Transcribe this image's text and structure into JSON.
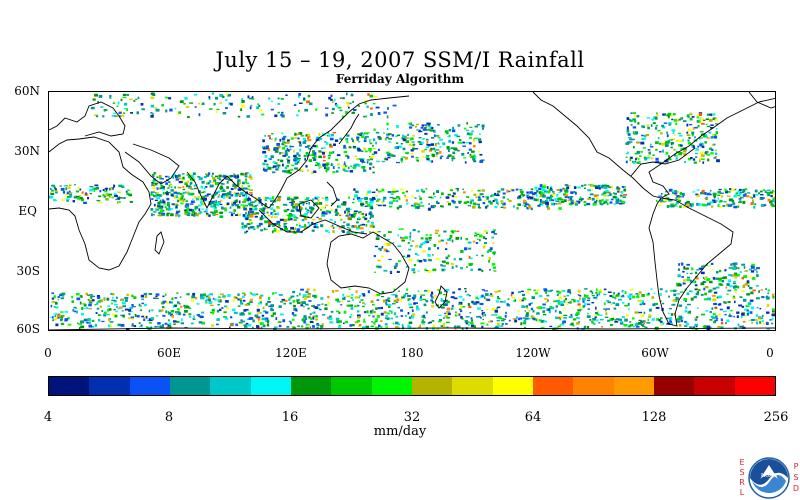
{
  "title": "July 15 – 19, 2007 SSM/I Rainfall",
  "subtitle": "Ferriday Algorithm",
  "latitude_labels": [
    "60N",
    "30N",
    "EQ",
    "30S",
    "60S"
  ],
  "longitude_labels": [
    "0",
    "60E",
    "120E",
    "180",
    "120W",
    "60W",
    "0"
  ],
  "colorbar": {
    "colors": [
      "#00137a",
      "#002fb0",
      "#0a52f5",
      "#009691",
      "#00c8c8",
      "#00f5f5",
      "#00960a",
      "#00c800",
      "#00f500",
      "#b4b400",
      "#dcdc00",
      "#ffff00",
      "#ff5a00",
      "#ff8200",
      "#ff9b00",
      "#960000",
      "#c80000",
      "#ff0000"
    ],
    "tick_labels": [
      "4",
      "8",
      "16",
      "32",
      "64",
      "128",
      "256"
    ],
    "units": "mm/day"
  },
  "logo": {
    "left_letters": [
      "E",
      "S",
      "R",
      "L"
    ],
    "right_letters": [
      "P",
      "S",
      "D"
    ],
    "emblem_text": "NOAA"
  },
  "map": {
    "rain_bands": [
      {
        "name": "itcz-pacific",
        "lon": [
          150,
          255
        ],
        "lat": [
          2,
          12
        ],
        "density": 0.35
      },
      {
        "name": "itcz-east-pacific",
        "lon": [
          240,
          285
        ],
        "lat": [
          4,
          14
        ],
        "density": 0.55
      },
      {
        "name": "itcz-atlantic",
        "lon": [
          300,
          360
        ],
        "lat": [
          3,
          12
        ],
        "density": 0.5
      },
      {
        "name": "africa-monsoon",
        "lon": [
          0,
          40
        ],
        "lat": [
          5,
          14
        ],
        "density": 0.45
      },
      {
        "name": "indian-monsoon",
        "lon": [
          50,
          100
        ],
        "lat": [
          -2,
          20
        ],
        "density": 0.6
      },
      {
        "name": "maritime-continent",
        "lon": [
          95,
          160
        ],
        "lat": [
          -10,
          8
        ],
        "density": 0.45
      },
      {
        "name": "east-asia-front",
        "lon": [
          105,
          160
        ],
        "lat": [
          20,
          40
        ],
        "density": 0.4
      },
      {
        "name": "north-pacific-storm",
        "lon": [
          160,
          215
        ],
        "lat": [
          25,
          45
        ],
        "density": 0.3
      },
      {
        "name": "north-atlantic-storm",
        "lon": [
          285,
          330
        ],
        "lat": [
          25,
          50
        ],
        "density": 0.35
      },
      {
        "name": "southern-ocean-1",
        "lon": [
          0,
          120
        ],
        "lat": [
          -58,
          -40
        ],
        "density": 0.3
      },
      {
        "name": "southern-ocean-2",
        "lon": [
          120,
          360
        ],
        "lat": [
          -58,
          -38
        ],
        "density": 0.3
      },
      {
        "name": "spcz",
        "lon": [
          160,
          220
        ],
        "lat": [
          -30,
          -8
        ],
        "density": 0.2
      },
      {
        "name": "south-atlantic",
        "lon": [
          310,
          350
        ],
        "lat": [
          -38,
          -25
        ],
        "density": 0.35
      },
      {
        "name": "arctic-pacific",
        "lon": [
          20,
          170
        ],
        "lat": [
          48,
          60
        ],
        "density": 0.15
      }
    ]
  }
}
